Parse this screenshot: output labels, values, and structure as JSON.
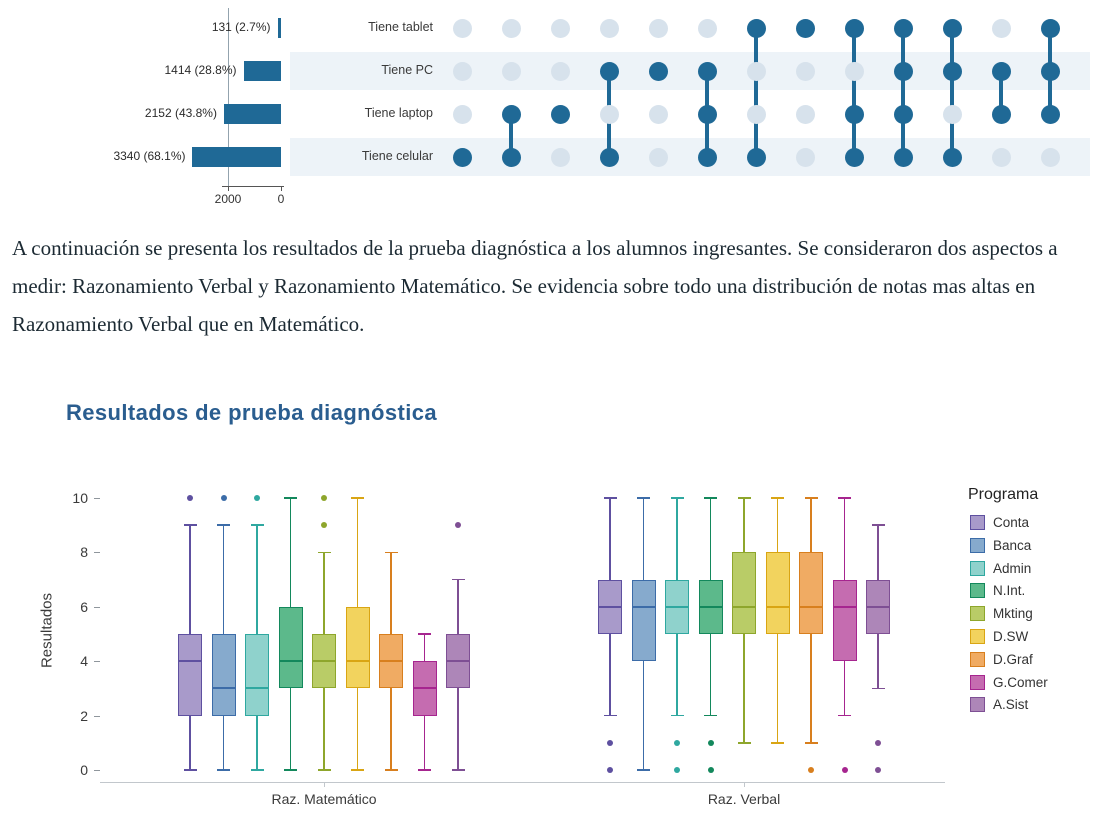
{
  "upset": {
    "rows": [
      {
        "label": "Tiene tablet",
        "count_label": "131 (2.7%)",
        "value": 131
      },
      {
        "label": "Tiene PC",
        "count_label": "1414 (28.8%)",
        "value": 1414
      },
      {
        "label": "Tiene laptop",
        "count_label": "2152 (43.8%)",
        "value": 2152
      },
      {
        "label": "Tiene celular",
        "count_label": "3340 (68.1%)",
        "value": 3340
      }
    ],
    "axis_ticks": [
      {
        "label": "2000",
        "value": 2000
      },
      {
        "label": "0",
        "value": 0
      }
    ],
    "columns": [
      [
        3
      ],
      [
        2,
        3
      ],
      [
        2
      ],
      [
        1,
        3
      ],
      [
        1
      ],
      [
        1,
        2,
        3
      ],
      [
        0,
        3
      ],
      [
        0
      ],
      [
        0,
        2,
        3
      ],
      [
        0,
        1,
        2,
        3
      ],
      [
        0,
        1,
        3
      ],
      [
        1,
        2
      ],
      [
        0,
        1,
        2
      ]
    ],
    "colors": {
      "bar": "#1f6996",
      "filled": "#1f6996",
      "empty": "#d7e2ec",
      "stripe": "#edf3f8"
    }
  },
  "paragraph": "A continuación se presenta los resultados de la prueba diagnóstica a los alumnos ingresantes. Se consideraron dos aspectos a medir: Razonamiento Verbal y Razonamiento Matemático. Se evidencia sobre todo una distribución de notas mas altas en Razonamiento Verbal que en Matemático.",
  "section_title": "Resultados de prueba diagnóstica",
  "chart_data": {
    "type": "boxplot",
    "title": "Resultados de prueba diagnóstica",
    "ylabel": "Resultados",
    "ylim": [
      0,
      10
    ],
    "yticks": [
      0,
      2,
      4,
      6,
      8,
      10
    ],
    "categories": [
      "Raz. Matemático",
      "Raz. Verbal"
    ],
    "legend_title": "Programa",
    "legend_position": "right",
    "grid": false,
    "series": [
      {
        "name": "Conta",
        "stroke": "#5e50a0",
        "fill": "#a89aca",
        "boxes": [
          {
            "min": 0,
            "q1": 2,
            "med": 4,
            "q3": 5,
            "max": 9,
            "outliers": [
              10
            ]
          },
          {
            "min": 2,
            "q1": 5,
            "med": 6,
            "q3": 7,
            "max": 10,
            "outliers": [
              1,
              0
            ]
          }
        ]
      },
      {
        "name": "Banca",
        "stroke": "#3c6ca8",
        "fill": "#86aacd",
        "boxes": [
          {
            "min": 0,
            "q1": 2,
            "med": 3,
            "q3": 5,
            "max": 9,
            "outliers": [
              10
            ]
          },
          {
            "min": 0,
            "q1": 4,
            "med": 6,
            "q3": 7,
            "max": 10,
            "outliers": []
          }
        ]
      },
      {
        "name": "Admin",
        "stroke": "#2fa8a0",
        "fill": "#8fd2cc",
        "boxes": [
          {
            "min": 0,
            "q1": 2,
            "med": 3,
            "q3": 5,
            "max": 9,
            "outliers": [
              10
            ]
          },
          {
            "min": 2,
            "q1": 5,
            "med": 6,
            "q3": 7,
            "max": 10,
            "outliers": [
              1,
              0
            ]
          }
        ]
      },
      {
        "name": "N.Int.",
        "stroke": "#13885c",
        "fill": "#5cb98b",
        "boxes": [
          {
            "min": 0,
            "q1": 3,
            "med": 4,
            "q3": 6,
            "max": 10,
            "outliers": []
          },
          {
            "min": 2,
            "q1": 5,
            "med": 6,
            "q3": 7,
            "max": 10,
            "outliers": [
              1,
              0
            ]
          }
        ]
      },
      {
        "name": "Mkting",
        "stroke": "#8ea62c",
        "fill": "#b9cc67",
        "boxes": [
          {
            "min": 0,
            "q1": 3,
            "med": 4,
            "q3": 5,
            "max": 8,
            "outliers": [
              10,
              9
            ]
          },
          {
            "min": 1,
            "q1": 5,
            "med": 6,
            "q3": 8,
            "max": 10,
            "outliers": []
          }
        ]
      },
      {
        "name": "D.SW",
        "stroke": "#d9a514",
        "fill": "#f2d35e",
        "boxes": [
          {
            "min": 0,
            "q1": 3,
            "med": 4,
            "q3": 6,
            "max": 10,
            "outliers": []
          },
          {
            "min": 1,
            "q1": 5,
            "med": 6,
            "q3": 8,
            "max": 10,
            "outliers": []
          }
        ]
      },
      {
        "name": "D.Graf",
        "stroke": "#d87f1e",
        "fill": "#f0ab63",
        "boxes": [
          {
            "min": 0,
            "q1": 3,
            "med": 4,
            "q3": 5,
            "max": 8,
            "outliers": []
          },
          {
            "min": 1,
            "q1": 5,
            "med": 6,
            "q3": 8,
            "max": 10,
            "outliers": [
              0
            ]
          }
        ]
      },
      {
        "name": "G.Comer",
        "stroke": "#a6258f",
        "fill": "#c56cb0",
        "boxes": [
          {
            "min": 0,
            "q1": 2,
            "med": 3,
            "q3": 4,
            "max": 5,
            "outliers": []
          },
          {
            "min": 2,
            "q1": 4,
            "med": 6,
            "q3": 7,
            "max": 10,
            "outliers": [
              0
            ]
          }
        ]
      },
      {
        "name": "A.Sist",
        "stroke": "#7e4f94",
        "fill": "#ad86b8",
        "boxes": [
          {
            "min": 0,
            "q1": 3,
            "med": 4,
            "q3": 5,
            "max": 7,
            "outliers": [
              9
            ]
          },
          {
            "min": 3,
            "q1": 5,
            "med": 6,
            "q3": 7,
            "max": 9,
            "outliers": [
              1,
              0
            ]
          }
        ]
      }
    ]
  }
}
